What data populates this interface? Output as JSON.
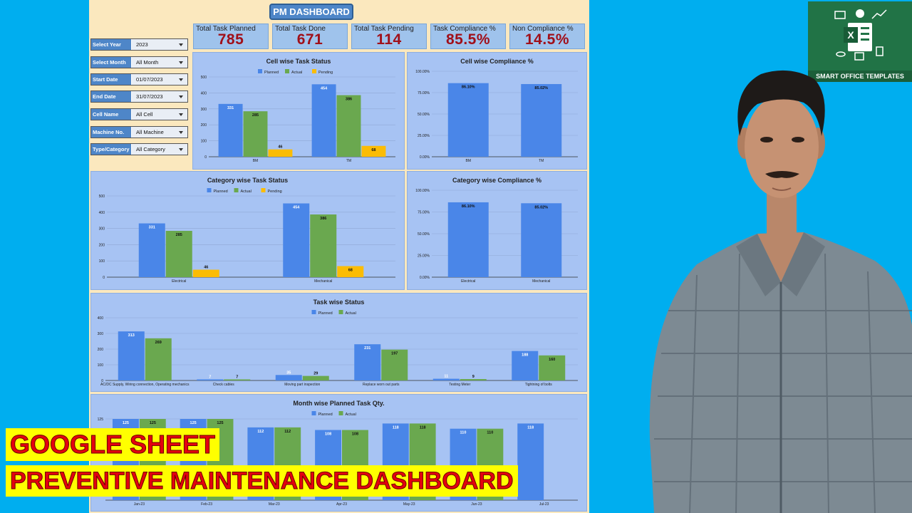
{
  "dashboard_title": "PM DASHBOARD",
  "kpis": [
    {
      "label": "Total Task Planned",
      "value": "785"
    },
    {
      "label": "Total Task Done",
      "value": "671"
    },
    {
      "label": "Total Task Pending",
      "value": "114"
    },
    {
      "label": "Task Compliance %",
      "value": "85.5%"
    },
    {
      "label": "Non Compliance %",
      "value": "14.5%"
    }
  ],
  "filters": [
    {
      "label": "Select Year",
      "value": "2023"
    },
    {
      "label": "Select Month",
      "value": "All Month"
    },
    {
      "label": "Start Date",
      "value": "01/07/2023"
    },
    {
      "label": "End Date",
      "value": "31/07/2023"
    },
    {
      "label": "Cell Name",
      "value": "All Cell"
    },
    {
      "label": "Machine No.",
      "value": "All Machine"
    },
    {
      "label": "Type/Category",
      "value": "All Category"
    }
  ],
  "colors": {
    "planned": "#4A86E8",
    "actual": "#6AA84F",
    "pending": "#FBBC04",
    "value_text": "#A0101A",
    "banner_bg": "#FFFF00",
    "banner_text": "#E4000F"
  },
  "chart_data": [
    {
      "id": "cell-task",
      "type": "bar",
      "title": "Cell wise Task Status",
      "categories": [
        "BM",
        "TM"
      ],
      "series": [
        {
          "name": "Planned",
          "values": [
            331,
            454
          ]
        },
        {
          "name": "Actual",
          "values": [
            285,
            386
          ]
        },
        {
          "name": "Pending",
          "values": [
            46,
            68
          ]
        }
      ],
      "ylim": [
        0,
        500
      ],
      "yticks": [
        "0",
        "100",
        "200",
        "300",
        "400",
        "500"
      ],
      "legend": "top",
      "grid": true
    },
    {
      "id": "cell-compliance",
      "type": "bar",
      "title": "Cell wise Compliance %",
      "categories": [
        "BM",
        "TM"
      ],
      "series": [
        {
          "values": [
            86.1,
            85.02
          ],
          "labels": [
            "86.10%",
            "85.02%"
          ]
        }
      ],
      "ylim": [
        0,
        100
      ],
      "yticks": [
        "0.00%",
        "25.00%",
        "50.00%",
        "75.00%",
        "100.00%"
      ],
      "grid": true
    },
    {
      "id": "category-task",
      "type": "bar",
      "title": "Category wise Task Status",
      "categories": [
        "Electrical",
        "Mechanical"
      ],
      "series": [
        {
          "name": "Planned",
          "values": [
            331,
            454
          ]
        },
        {
          "name": "Actual",
          "values": [
            285,
            386
          ]
        },
        {
          "name": "Pending",
          "values": [
            46,
            68
          ]
        }
      ],
      "ylim": [
        0,
        500
      ],
      "yticks": [
        "0",
        "100",
        "200",
        "300",
        "400",
        "500"
      ],
      "legend": "top",
      "grid": true
    },
    {
      "id": "category-compliance",
      "type": "bar",
      "title": "Category wise Compliance %",
      "categories": [
        "Electrical",
        "Mechanical"
      ],
      "series": [
        {
          "values": [
            86.1,
            85.02
          ],
          "labels": [
            "86.10%",
            "85.02%"
          ]
        }
      ],
      "ylim": [
        0,
        100
      ],
      "yticks": [
        "0.00%",
        "25.00%",
        "50.00%",
        "75.00%",
        "100.00%"
      ],
      "grid": true
    },
    {
      "id": "task-status",
      "type": "bar",
      "title": "Task  wise Status",
      "categories": [
        "AC/DC Supply, Wiring connection, Operating mechanics",
        "Check cables",
        "Moving part inspection",
        "Replace worn out parts",
        "Testing Meter",
        "Tightning of bolts"
      ],
      "series": [
        {
          "name": "Planned",
          "values": [
            313,
            7,
            35,
            231,
            11,
            188
          ]
        },
        {
          "name": "Actual",
          "values": [
            269,
            7,
            29,
            197,
            9,
            160
          ]
        }
      ],
      "ylim": [
        0,
        400
      ],
      "yticks": [
        "0",
        "100",
        "200",
        "300",
        "400"
      ],
      "legend": "top",
      "grid": true
    },
    {
      "id": "month-task",
      "type": "bar",
      "title": "Month wise Planned Task Qty.",
      "categories": [
        "Jan-23",
        "Feb-23",
        "Mar-23",
        "Apr-23",
        "May-23",
        "Jun-23",
        "Jul-23"
      ],
      "series": [
        {
          "name": "Planned",
          "values": [
            125,
            125,
            112,
            108,
            118,
            110,
            118
          ]
        },
        {
          "name": "Actual",
          "values": [
            125,
            125,
            112,
            108,
            118,
            110,
            null
          ]
        }
      ],
      "ylim": [
        0,
        125
      ],
      "yticks": [
        "125"
      ],
      "legend": "top",
      "grid": true
    }
  ],
  "logo": {
    "caption": "SMART OFFICE TEMPLATES",
    "icon": "excel-icon"
  },
  "banner": {
    "line1": "GOOGLE SHEET",
    "line2": "PREVENTIVE MAINTENANCE DASHBOARD"
  }
}
